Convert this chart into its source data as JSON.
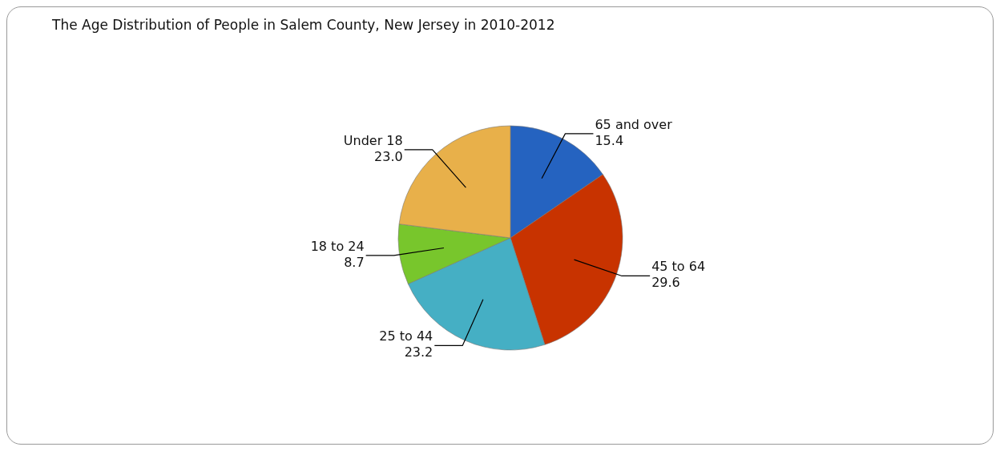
{
  "chart_data": {
    "type": "pie",
    "title": "The Age Distribution of People in Salem County, New Jersey in 2010-2012",
    "categories": [
      "65 and over",
      "45 to 64",
      "25 to 44",
      "18 to 24",
      "Under 18"
    ],
    "values": [
      15.4,
      29.6,
      23.2,
      8.7,
      23.0
    ],
    "value_labels": [
      "15.4",
      "29.6",
      "23.2",
      "8.7",
      "23.0"
    ],
    "colors": [
      "#2563c0",
      "#c83300",
      "#45afc4",
      "#78c62c",
      "#e8b04a"
    ]
  }
}
